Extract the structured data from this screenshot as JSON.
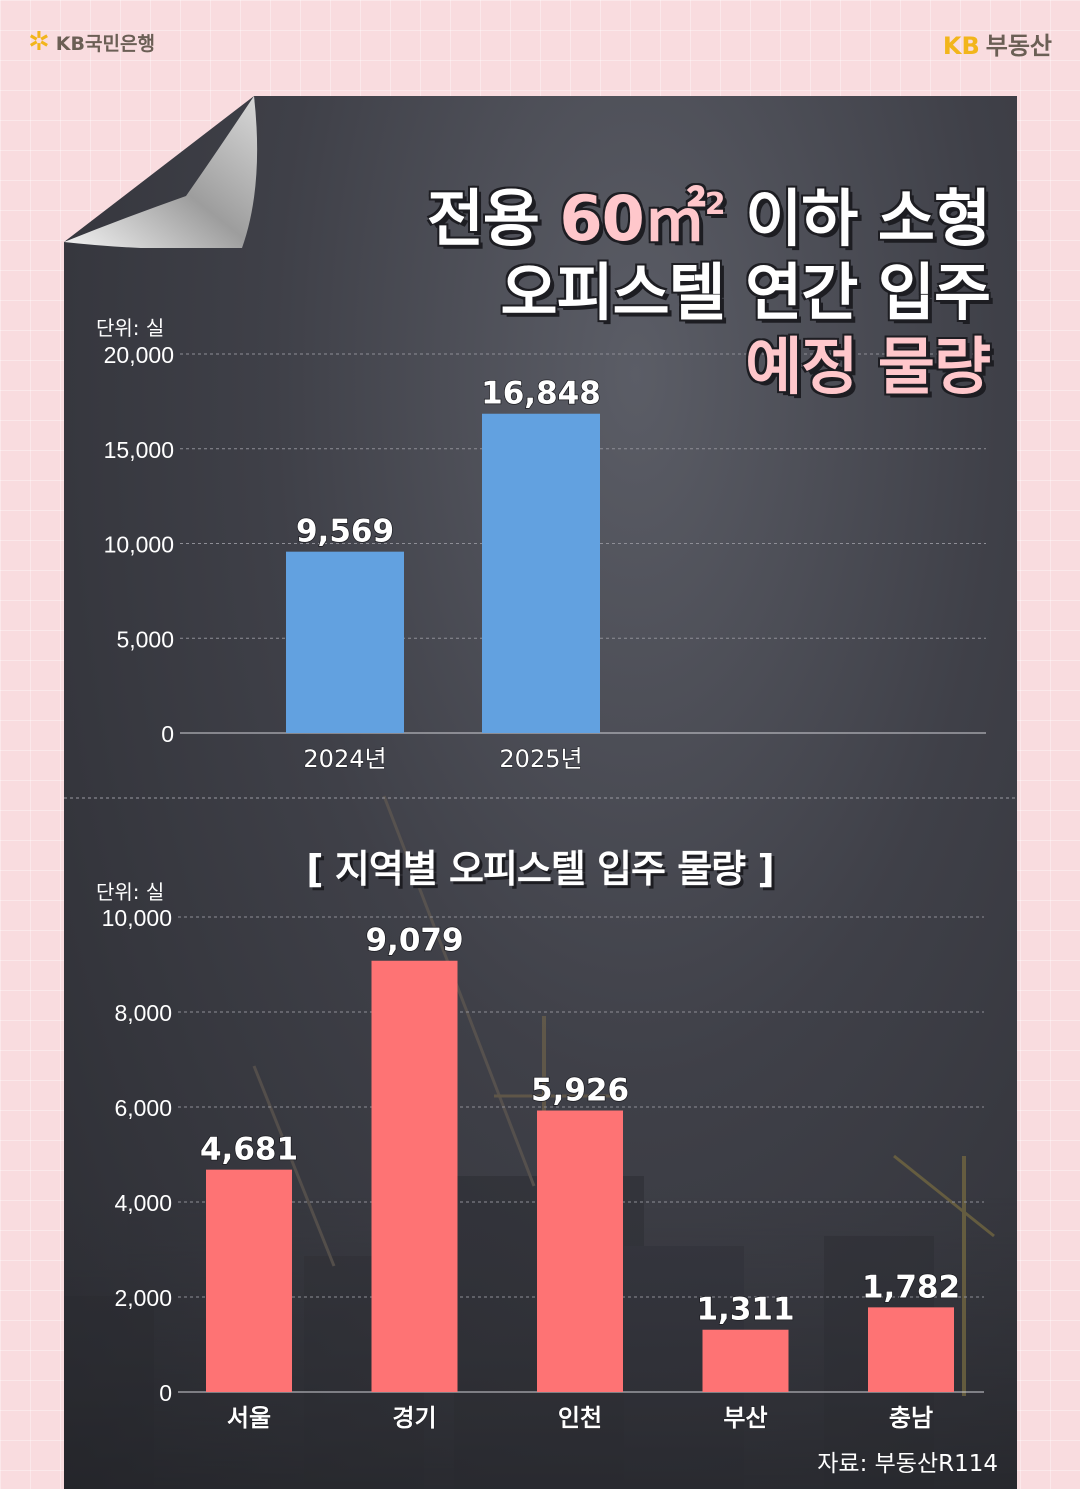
{
  "header": {
    "left_brand": "KB국민은행",
    "right_brand_kb": "KB",
    "right_brand_name": "부동산"
  },
  "title": {
    "line1_a": "전용 ",
    "line1_b": "60㎡",
    "line1_sup": "2",
    "line1_c": " 이하 소형",
    "line2": "오피스텔 연간 입주",
    "line3": "예정 물량"
  },
  "chart_data": [
    {
      "type": "bar",
      "unit_label": "단위: 실",
      "categories": [
        "2024년",
        "2025년"
      ],
      "values": [
        9569,
        16848
      ],
      "value_labels": [
        "9,569",
        "16,848"
      ],
      "yticks": [
        "0",
        "5,000",
        "10,000",
        "15,000",
        "20,000"
      ],
      "ylim": [
        0,
        20000
      ],
      "color": "#62a1e0"
    },
    {
      "type": "bar",
      "title": "[  지역별 오피스텔 입주 물량  ]",
      "unit_label": "단위: 실",
      "categories": [
        "서울",
        "경기",
        "인천",
        "부산",
        "충남"
      ],
      "values": [
        4681,
        9079,
        5926,
        1311,
        1782
      ],
      "value_labels": [
        "4,681",
        "9,079",
        "5,926",
        "1,311",
        "1,782"
      ],
      "yticks": [
        "0",
        "2,000",
        "4,000",
        "6,000",
        "8,000",
        "10,000"
      ],
      "ylim": [
        0,
        10000
      ],
      "color": "#fe7374"
    }
  ],
  "source": "자료: 부동산R114"
}
